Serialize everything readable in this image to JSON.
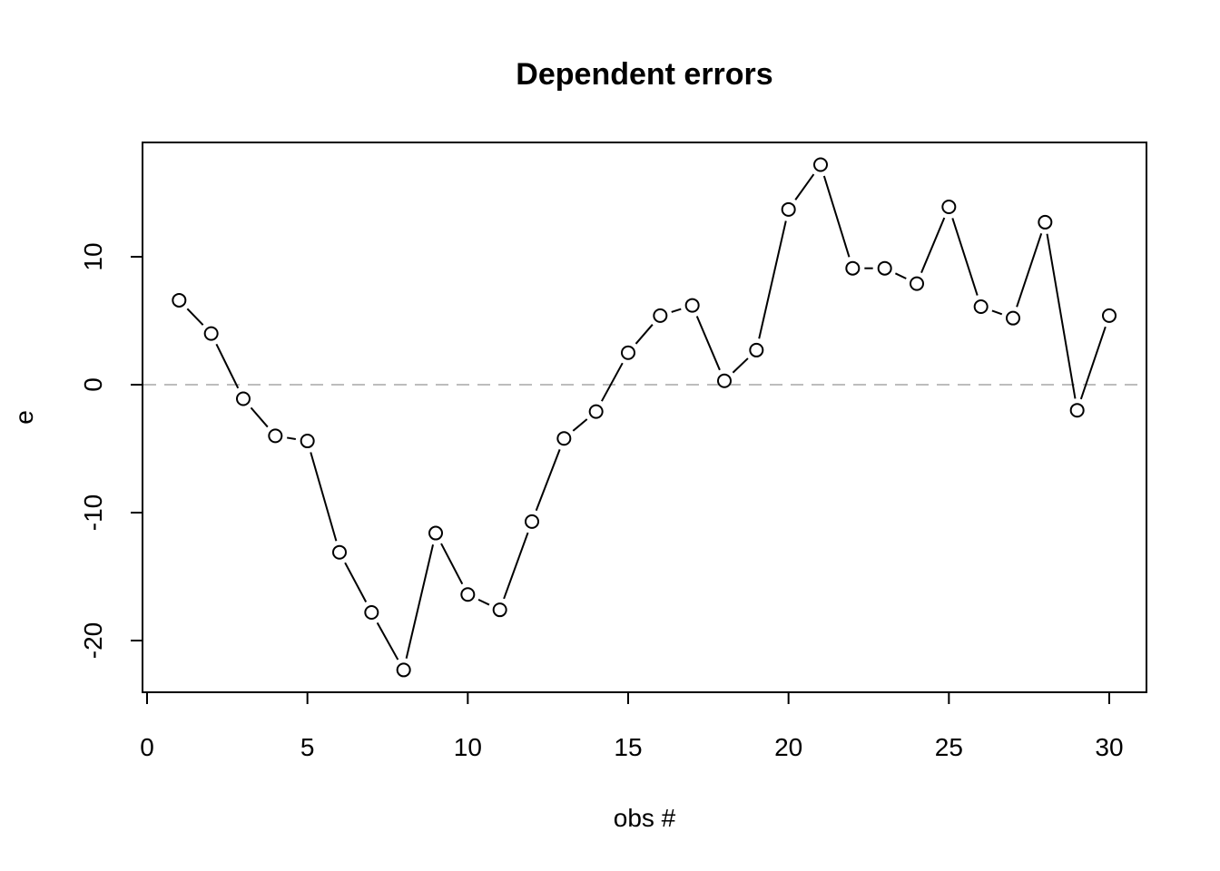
{
  "chart_data": {
    "type": "line",
    "title": "Dependent errors",
    "xlabel": "obs #",
    "ylabel": "e",
    "xlim": [
      0,
      31
    ],
    "ylim": [
      -24,
      18.5
    ],
    "x_ticks": [
      0,
      5,
      10,
      15,
      20,
      25,
      30
    ],
    "y_ticks": [
      -20,
      -10,
      0,
      10
    ],
    "reference_line": {
      "y": 0,
      "style": "dashed",
      "color": "#bdbdbd"
    },
    "grid": false,
    "marker": "open-circle",
    "series": [
      {
        "x": [
          1,
          2,
          3,
          4,
          5,
          6,
          7,
          8,
          9,
          10,
          11,
          12,
          13,
          14,
          15,
          16,
          17,
          18,
          19,
          20,
          21,
          22,
          23,
          24,
          25,
          26,
          27,
          28,
          29,
          30
        ],
        "values": [
          6.6,
          4.0,
          -1.1,
          -4.0,
          -4.4,
          -13.1,
          -17.8,
          -22.3,
          -11.6,
          -16.4,
          -17.6,
          -10.7,
          -4.2,
          -2.1,
          2.5,
          5.4,
          6.2,
          0.3,
          2.7,
          13.7,
          17.2,
          9.1,
          9.1,
          7.9,
          13.9,
          6.1,
          5.2,
          12.7,
          -2.0,
          5.4
        ]
      }
    ]
  }
}
